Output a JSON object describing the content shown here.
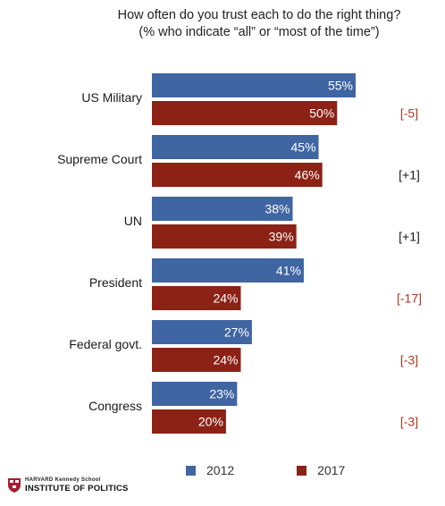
{
  "chart_data": {
    "type": "bar",
    "orientation": "horizontal",
    "title": "How often do you trust each to do the right thing?",
    "subtitle": "(% who indicate “all” or “most of the time”)",
    "categories": [
      "US Military",
      "Supreme Court",
      "UN",
      "President",
      "Federal govt.",
      "Congress"
    ],
    "series": [
      {
        "name": "2012",
        "color": "#4065a3",
        "values": [
          55,
          45,
          38,
          41,
          27,
          23
        ],
        "labels": [
          "55%",
          "45%",
          "38%",
          "41%",
          "27%",
          "23%"
        ]
      },
      {
        "name": "2017",
        "color": "#8b2215",
        "values": [
          50,
          46,
          39,
          24,
          24,
          20
        ],
        "labels": [
          "50%",
          "46%",
          "39%",
          "24%",
          "24%",
          "20%"
        ]
      }
    ],
    "changes": [
      {
        "text": "[-5]",
        "color": "#b2371f"
      },
      {
        "text": "[+1]",
        "color": "#1a1a1a"
      },
      {
        "text": "[+1]",
        "color": "#1a1a1a"
      },
      {
        "text": "[-17]",
        "color": "#b2371f"
      },
      {
        "text": "[-3]",
        "color": "#b2371f"
      },
      {
        "text": "[-3]",
        "color": "#b2371f"
      }
    ],
    "legend": {
      "position": "bottom"
    },
    "grid": false
  },
  "logo": {
    "top_text": "HARVARD Kennedy School",
    "bottom_text": "INSTITUTE OF POLITICS",
    "color": "#a51c30"
  }
}
